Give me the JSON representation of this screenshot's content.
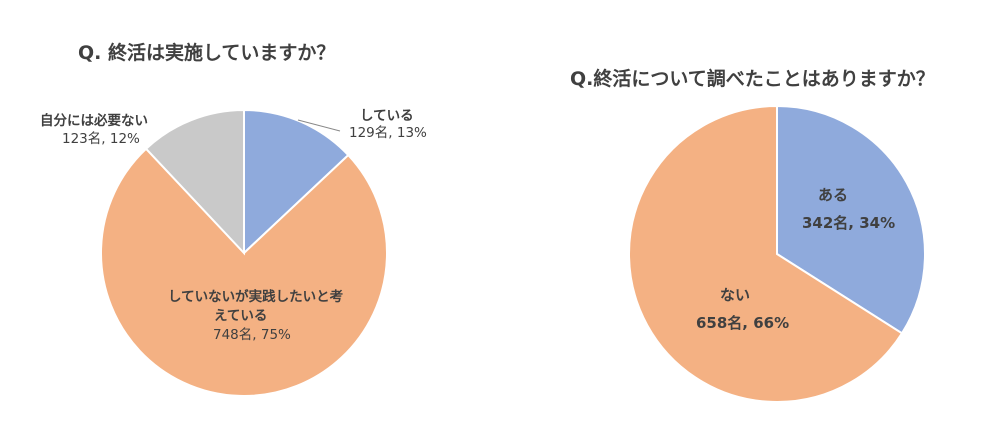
{
  "chart_data": [
    {
      "type": "pie",
      "title": "Q. 終活は実施していますか？",
      "slices": [
        {
          "name": "している",
          "count_label": "129名, 13%",
          "value": 13,
          "color": "#8faadc"
        },
        {
          "name": "していないが実践したいと考えている",
          "name_line1": "していないが実践したいと考",
          "name_line2": "えている",
          "count_label": "748名, 75%",
          "value": 75,
          "color": "#f4b183"
        },
        {
          "name": "自分には必要ない",
          "count_label": "123名, 12%",
          "value": 12,
          "color": "#c9c9c9"
        }
      ]
    },
    {
      "type": "pie",
      "title": "Q.終活について調べたことはありますか？",
      "slices": [
        {
          "name": "ある",
          "count_label": "342名, 34%",
          "value": 34,
          "color": "#8faadc"
        },
        {
          "name": "ない",
          "count_label": "658名, 66%",
          "value": 66,
          "color": "#f4b183"
        }
      ]
    }
  ]
}
